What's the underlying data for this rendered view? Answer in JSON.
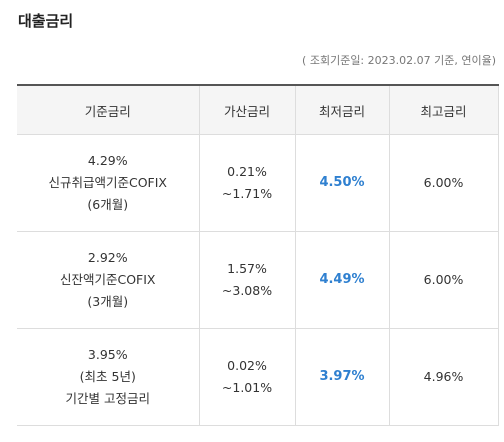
{
  "title": "대출금리",
  "note": "( 조회기준일: 2023.02.07 기준, 연이율)",
  "columns": [
    "기준금리",
    "가산금리",
    "최저금리",
    "최고금리"
  ],
  "rows": [
    {
      "base_rate": "4.29%",
      "base_name": "신규취급액기준COFIX",
      "base_period": "(6개월)",
      "spread_from": "0.21%",
      "spread_to": "~1.71%",
      "lowest": "4.50%",
      "highest": "6.00%"
    },
    {
      "base_rate": "2.92%",
      "base_name": "신잔액기준COFIX",
      "base_period": "(3개월)",
      "spread_from": "1.57%",
      "spread_to": "~3.08%",
      "lowest": "4.49%",
      "highest": "6.00%"
    },
    {
      "base_rate": "3.95%",
      "base_name": "(최초 5년)",
      "base_period": "기간별 고정금리",
      "spread_from": "0.02%",
      "spread_to": "~1.01%",
      "lowest": "3.97%",
      "highest": "4.96%"
    }
  ],
  "colors": {
    "lowest_rate": "#2f80d0",
    "header_bg": "#f5f5f5",
    "top_border": "#555555"
  }
}
